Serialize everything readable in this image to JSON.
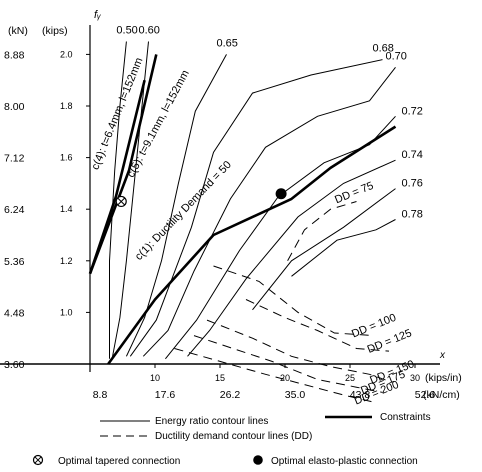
{
  "chart_data": {
    "type": "line",
    "x_label": "x",
    "y_label": "fᵧ",
    "x_units_primary": "(kips/in)",
    "x_units_secondary": "(kN/cm)",
    "y_units_primary": "(kips)",
    "y_units_secondary": "(kN)",
    "x_ticks_primary": [
      "10",
      "15",
      "20",
      "25",
      "30"
    ],
    "x_ticks_secondary": [
      "8.8",
      "17.6",
      "26.2",
      "35.0",
      "43.8",
      "52.6"
    ],
    "y_ticks_primary": [
      "1.0",
      "1.2",
      "1.4",
      "1.6",
      "1.8",
      "2.0"
    ],
    "y_ticks_secondary": [
      "3.60",
      "4.48",
      "5.36",
      "6.24",
      "7.12",
      "8.00",
      "8.88"
    ],
    "xlim": [
      5,
      30
    ],
    "ylim": [
      0.8,
      2.0
    ],
    "energy_ratio_contours": [
      {
        "label": "0.50",
        "points": [
          [
            6.5,
            0.82
          ],
          [
            6.5,
            1.2
          ],
          [
            6.9,
            1.55
          ],
          [
            7.3,
            1.8
          ],
          [
            7.8,
            2.05
          ]
        ]
      },
      {
        "label": "0.60",
        "points": [
          [
            6.7,
            0.82
          ],
          [
            7.3,
            0.98
          ],
          [
            7.8,
            1.2
          ],
          [
            8.5,
            1.55
          ],
          [
            9.5,
            2.05
          ]
        ]
      },
      {
        "label": "0.65",
        "points": [
          [
            7.8,
            0.83
          ],
          [
            9.2,
            0.98
          ],
          [
            10.5,
            1.2
          ],
          [
            11.8,
            1.5
          ],
          [
            13.1,
            1.78
          ],
          [
            15.5,
            2.0
          ]
        ]
      },
      {
        "label": "0.68",
        "points": [
          [
            8.1,
            0.83
          ],
          [
            10.1,
            0.97
          ],
          [
            12.8,
            1.33
          ],
          [
            14.5,
            1.62
          ],
          [
            17.5,
            1.85
          ],
          [
            22.0,
            1.92
          ],
          [
            27.5,
            1.98
          ]
        ]
      },
      {
        "label": "0.70",
        "points": [
          [
            9.1,
            0.83
          ],
          [
            11.0,
            0.93
          ],
          [
            13.0,
            1.16
          ],
          [
            15.8,
            1.44
          ],
          [
            18.5,
            1.64
          ],
          [
            22.5,
            1.76
          ],
          [
            26.5,
            1.82
          ],
          [
            28.5,
            1.95
          ]
        ]
      },
      {
        "label": "0.72",
        "points": [
          [
            10.8,
            0.82
          ],
          [
            13.2,
            0.97
          ],
          [
            16.5,
            1.24
          ],
          [
            19.5,
            1.45
          ],
          [
            23.0,
            1.58
          ],
          [
            26.5,
            1.65
          ],
          [
            28.5,
            1.76
          ]
        ]
      },
      {
        "label": "0.74",
        "points": [
          [
            12.5,
            0.83
          ],
          [
            14.2,
            0.93
          ],
          [
            17.0,
            1.13
          ],
          [
            21.0,
            1.37
          ],
          [
            24.5,
            1.5
          ],
          [
            28.5,
            1.59
          ]
        ]
      },
      {
        "label": "0.76",
        "points": [
          [
            17.5,
            1.01
          ],
          [
            20.5,
            1.2
          ],
          [
            24.5,
            1.33
          ],
          [
            28.5,
            1.48
          ]
        ]
      },
      {
        "label": "0.78",
        "points": [
          [
            20.5,
            1.14
          ],
          [
            24.0,
            1.28
          ],
          [
            27.0,
            1.32
          ],
          [
            28.5,
            1.36
          ]
        ]
      }
    ],
    "ductility_demand_contours": [
      {
        "label": "DD = 75",
        "points": [
          [
            20.2,
            1.2
          ],
          [
            21.5,
            1.32
          ],
          [
            23.5,
            1.4
          ],
          [
            25.5,
            1.43
          ]
        ]
      },
      {
        "label": "DD = 100",
        "points": [
          [
            14.5,
            1.18
          ],
          [
            18.0,
            1.12
          ],
          [
            21.0,
            1.0
          ],
          [
            23.8,
            0.92
          ],
          [
            26.8,
            0.91
          ]
        ]
      },
      {
        "label": "DD = 125",
        "points": [
          [
            17.0,
            1.05
          ],
          [
            20.0,
            0.98
          ],
          [
            22.5,
            0.93
          ],
          [
            25.5,
            0.86
          ],
          [
            28.0,
            0.85
          ]
        ]
      },
      {
        "label": "DD = 150",
        "points": [
          [
            14.0,
            0.97
          ],
          [
            17.5,
            0.9
          ],
          [
            20.5,
            0.83
          ],
          [
            23.5,
            0.79
          ],
          [
            26.5,
            0.76
          ],
          [
            28.2,
            0.73
          ]
        ]
      },
      {
        "label": "DD = 175",
        "points": [
          [
            13.0,
            0.91
          ],
          [
            16.0,
            0.86
          ],
          [
            19.0,
            0.81
          ],
          [
            22.5,
            0.74
          ],
          [
            25.5,
            0.71
          ],
          [
            27.5,
            0.69
          ]
        ]
      },
      {
        "label": "DD = 200",
        "points": [
          [
            11.5,
            0.86
          ],
          [
            15.0,
            0.81
          ],
          [
            18.5,
            0.76
          ],
          [
            21.5,
            0.72
          ],
          [
            24.5,
            0.68
          ],
          [
            27.0,
            0.65
          ]
        ]
      }
    ],
    "constraints": [
      {
        "label": "c(4): t=6.4mm, l=152mm",
        "points": [
          [
            5.0,
            1.15
          ],
          [
            7.0,
            1.45
          ],
          [
            9.2,
            1.9
          ]
        ]
      },
      {
        "label": "c(5): t=9.1mm, l=152mm",
        "points": [
          [
            5.0,
            1.15
          ],
          [
            8.0,
            1.55
          ],
          [
            10.1,
            2.0
          ]
        ]
      },
      {
        "label": "c(1): Ductility Demand = 50",
        "points": [
          [
            6.4,
            0.8
          ],
          [
            10.0,
            1.05
          ],
          [
            14.5,
            1.3
          ],
          [
            20.5,
            1.44
          ],
          [
            23.5,
            1.56
          ],
          [
            28.5,
            1.72
          ]
        ]
      }
    ],
    "optimal_tapered": {
      "x": 7.4,
      "y": 1.43
    },
    "optimal_elasto_plastic": {
      "x": 19.7,
      "y": 1.46
    }
  },
  "legend": {
    "energy": "Energy ratio contour lines",
    "constraints": "Constraints",
    "ductility": "Ductility demand contour lines (DD)",
    "tapered": "Optimal tapered connection",
    "elasto": "Optimal elasto-plastic connection"
  }
}
